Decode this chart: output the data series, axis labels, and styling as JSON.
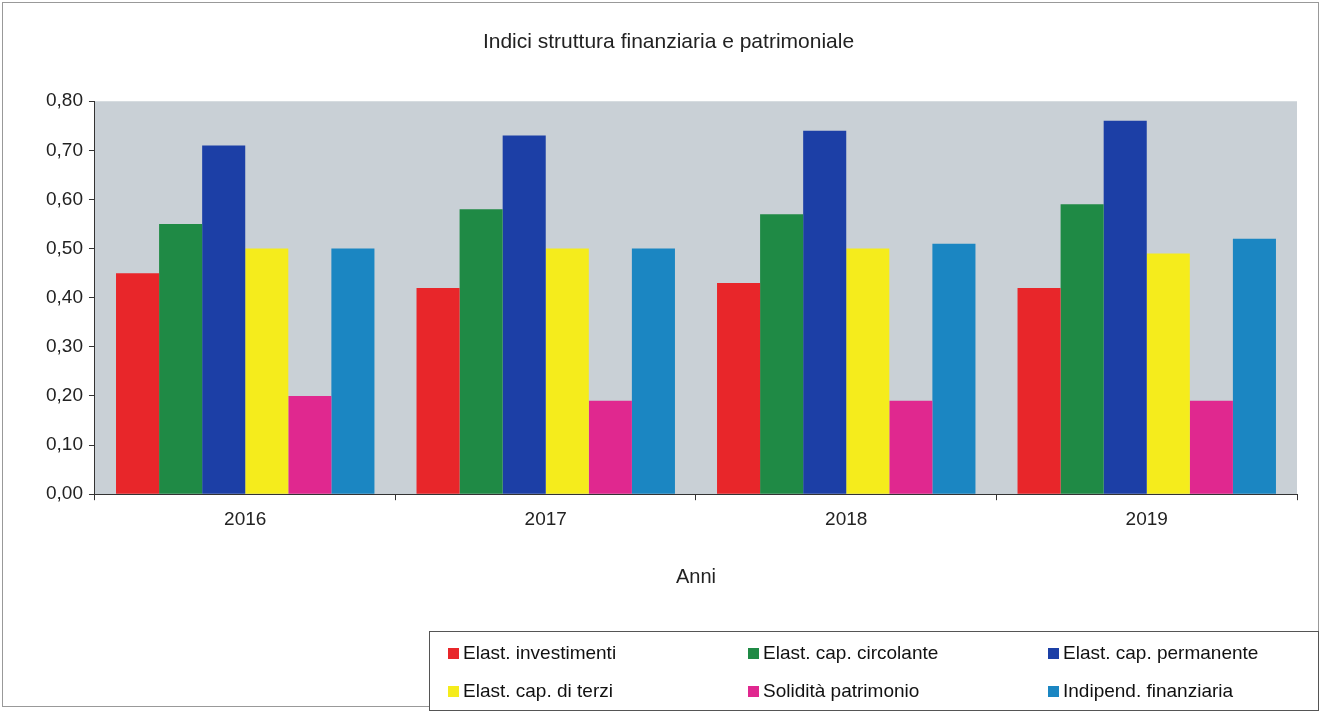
{
  "chart_data": {
    "type": "bar",
    "title": "Indici struttura finanziaria e patrimoniale",
    "xlabel": "Anni",
    "categories": [
      "2016",
      "2017",
      "2018",
      "2019"
    ],
    "series": [
      {
        "name": "Elast. investimenti",
        "color": "#e8262a",
        "values": [
          0.45,
          0.42,
          0.43,
          0.42
        ]
      },
      {
        "name": "Elast. cap. circolante",
        "color": "#1f8a45",
        "values": [
          0.55,
          0.58,
          0.57,
          0.59
        ]
      },
      {
        "name": "Elast. cap. permanente",
        "color": "#1c3fa6",
        "values": [
          0.71,
          0.73,
          0.74,
          0.76
        ]
      },
      {
        "name": "Elast. cap. di terzi",
        "color": "#f5ec1c",
        "values": [
          0.5,
          0.5,
          0.5,
          0.49
        ]
      },
      {
        "name": "Solidità patrimonio",
        "color": "#e0288f",
        "values": [
          0.2,
          0.19,
          0.19,
          0.19
        ]
      },
      {
        "name": "Indipend. finanziaria",
        "color": "#1b86c2",
        "values": [
          0.5,
          0.5,
          0.51,
          0.52
        ]
      }
    ],
    "ylim": [
      0,
      0.8
    ],
    "yticks": [
      {
        "value": 0,
        "label": "0,00"
      },
      {
        "value": 0.1,
        "label": "0,10"
      },
      {
        "value": 0.2,
        "label": "0,20"
      },
      {
        "value": 0.3,
        "label": "0,30"
      },
      {
        "value": 0.4,
        "label": "0,40"
      },
      {
        "value": 0.5,
        "label": "0,50"
      },
      {
        "value": 0.6,
        "label": "0,60"
      },
      {
        "value": 0.7,
        "label": "0,70"
      },
      {
        "value": 0.8,
        "label": "0,80"
      }
    ],
    "grid": false,
    "legend": "bottom right"
  }
}
